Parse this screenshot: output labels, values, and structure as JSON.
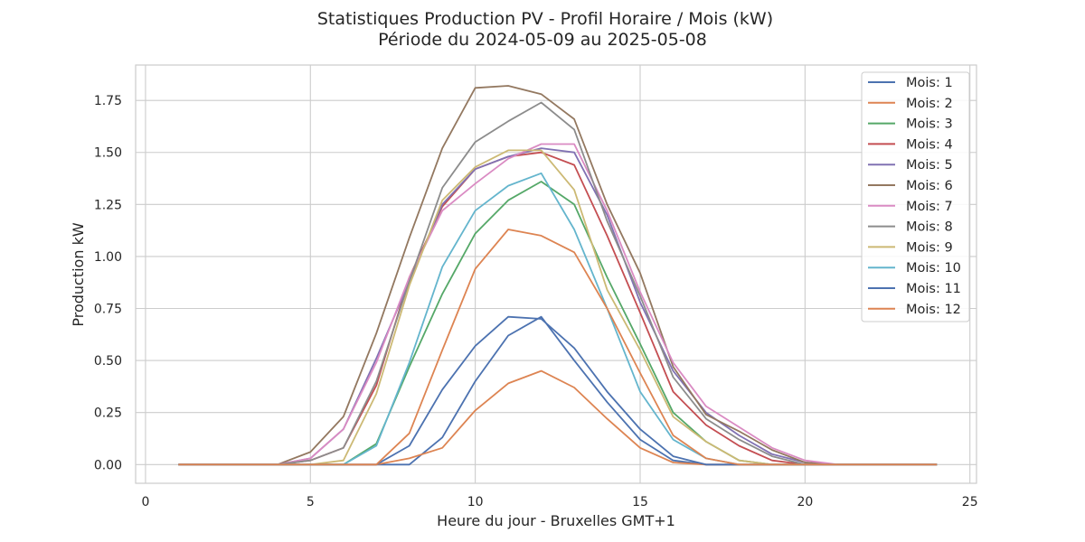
{
  "chart_data": {
    "type": "line",
    "title": "Statistiques Production PV - Profil Horaire / Mois (kW)",
    "subtitle": "Période du 2024-05-09 au 2025-05-08",
    "xlabel": "Heure du jour - Bruxelles GMT+1",
    "ylabel": "Production kW",
    "xlim": [
      -0.3,
      25.2
    ],
    "ylim": [
      -0.09,
      1.92
    ],
    "xticks": [
      0,
      5,
      10,
      15,
      20,
      25
    ],
    "xtick_labels": [
      "0",
      "5",
      "10",
      "15",
      "20",
      "25"
    ],
    "yticks": [
      0.0,
      0.25,
      0.5,
      0.75,
      1.0,
      1.25,
      1.5,
      1.75
    ],
    "ytick_labels": [
      "0.00",
      "0.25",
      "0.50",
      "0.75",
      "1.00",
      "1.25",
      "1.50",
      "1.75"
    ],
    "grid": true,
    "legend_position": "top-right",
    "x": [
      1,
      2,
      3,
      4,
      5,
      6,
      7,
      8,
      9,
      10,
      11,
      12,
      13,
      14,
      15,
      16,
      17,
      18,
      19,
      20,
      21,
      22,
      23,
      24
    ],
    "series": [
      {
        "name": "Mois: 1",
        "color": "#4c72b0",
        "values": [
          0,
          0,
          0,
          0,
          0,
          0,
          0,
          0,
          0.13,
          0.4,
          0.62,
          0.71,
          0.5,
          0.3,
          0.12,
          0.02,
          0,
          0,
          0,
          0,
          0,
          0,
          0,
          0
        ]
      },
      {
        "name": "Mois: 2",
        "color": "#dd8452",
        "values": [
          0,
          0,
          0,
          0,
          0,
          0,
          0,
          0.03,
          0.08,
          0.26,
          0.39,
          0.45,
          0.37,
          0.22,
          0.08,
          0.01,
          0,
          0,
          0,
          0,
          0,
          0,
          0,
          0
        ]
      },
      {
        "name": "Mois: 3",
        "color": "#55a868",
        "values": [
          0,
          0,
          0,
          0,
          0,
          0,
          0.1,
          0.47,
          0.82,
          1.11,
          1.27,
          1.36,
          1.25,
          0.9,
          0.58,
          0.25,
          0.11,
          0.02,
          0,
          0,
          0,
          0,
          0,
          0
        ]
      },
      {
        "name": "Mois: 4",
        "color": "#c44e52",
        "values": [
          0,
          0,
          0,
          0,
          0.02,
          0.08,
          0.38,
          0.9,
          1.24,
          1.42,
          1.48,
          1.5,
          1.44,
          1.1,
          0.73,
          0.35,
          0.19,
          0.09,
          0.02,
          0,
          0,
          0,
          0,
          0
        ]
      },
      {
        "name": "Mois: 5",
        "color": "#8172b3",
        "values": [
          0,
          0,
          0,
          0,
          0.03,
          0.17,
          0.51,
          0.88,
          1.25,
          1.42,
          1.48,
          1.52,
          1.5,
          1.2,
          0.78,
          0.45,
          0.25,
          0.14,
          0.05,
          0.01,
          0,
          0,
          0,
          0
        ]
      },
      {
        "name": "Mois: 6",
        "color": "#937860",
        "values": [
          0,
          0,
          0,
          0,
          0.06,
          0.23,
          0.63,
          1.09,
          1.52,
          1.81,
          1.82,
          1.78,
          1.66,
          1.25,
          0.92,
          0.47,
          0.24,
          0.16,
          0.07,
          0.01,
          0,
          0,
          0,
          0
        ]
      },
      {
        "name": "Mois: 7",
        "color": "#da8bc3",
        "values": [
          0,
          0,
          0,
          0,
          0.03,
          0.17,
          0.49,
          0.9,
          1.22,
          1.35,
          1.47,
          1.54,
          1.54,
          1.22,
          0.83,
          0.49,
          0.28,
          0.18,
          0.08,
          0.02,
          0,
          0,
          0,
          0
        ]
      },
      {
        "name": "Mois: 8",
        "color": "#8c8c8c",
        "values": [
          0,
          0,
          0,
          0,
          0.02,
          0.08,
          0.4,
          0.88,
          1.33,
          1.55,
          1.65,
          1.74,
          1.61,
          1.17,
          0.81,
          0.42,
          0.22,
          0.12,
          0.04,
          0,
          0,
          0,
          0,
          0
        ]
      },
      {
        "name": "Mois: 9",
        "color": "#ccb974",
        "values": [
          0,
          0,
          0,
          0,
          0,
          0.02,
          0.34,
          0.86,
          1.27,
          1.43,
          1.51,
          1.51,
          1.32,
          0.84,
          0.55,
          0.23,
          0.11,
          0.02,
          0,
          0,
          0,
          0,
          0,
          0
        ]
      },
      {
        "name": "Mois: 10",
        "color": "#64b5cd",
        "values": [
          0,
          0,
          0,
          0,
          0,
          0,
          0.09,
          0.49,
          0.95,
          1.22,
          1.34,
          1.4,
          1.13,
          0.75,
          0.35,
          0.12,
          0.03,
          0,
          0,
          0,
          0,
          0,
          0,
          0
        ]
      },
      {
        "name": "Mois: 11",
        "color": "#4c72b0",
        "values": [
          0,
          0,
          0,
          0,
          0,
          0,
          0,
          0.09,
          0.36,
          0.57,
          0.71,
          0.7,
          0.56,
          0.35,
          0.17,
          0.04,
          0,
          0,
          0,
          0,
          0,
          0,
          0,
          0
        ]
      },
      {
        "name": "Mois: 12",
        "color": "#dd8452",
        "values": [
          0,
          0,
          0,
          0,
          0,
          0,
          0,
          0.15,
          0.55,
          0.94,
          1.13,
          1.1,
          1.02,
          0.75,
          0.44,
          0.14,
          0.03,
          0,
          0,
          0,
          0,
          0,
          0,
          0
        ]
      }
    ]
  }
}
